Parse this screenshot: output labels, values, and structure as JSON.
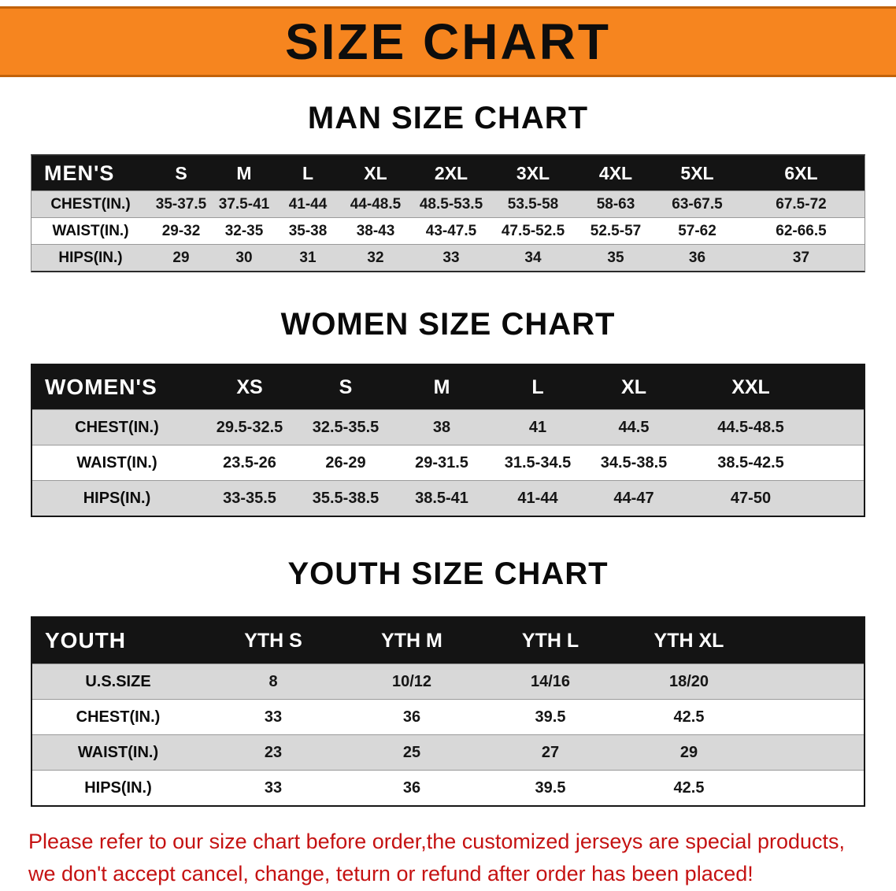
{
  "banner": {
    "title": "SIZE CHART"
  },
  "colors": {
    "banner_bg": "#f6851f",
    "banner_edge": "#c2620a",
    "table_header_bg": "#141414",
    "row_stripe": "#d8d8d8",
    "footer_text": "#c51212"
  },
  "chart_data": [
    {
      "type": "table",
      "title": "MAN SIZE CHART",
      "columns": [
        "MEN'S",
        "S",
        "M",
        "L",
        "XL",
        "2XL",
        "3XL",
        "4XL",
        "5XL",
        "6XL"
      ],
      "rows": [
        {
          "label": "CHEST(IN.)",
          "values": [
            "35-37.5",
            "37.5-41",
            "41-44",
            "44-48.5",
            "48.5-53.5",
            "53.5-58",
            "58-63",
            "63-67.5",
            "67.5-72"
          ]
        },
        {
          "label": "WAIST(IN.)",
          "values": [
            "29-32",
            "32-35",
            "35-38",
            "38-43",
            "43-47.5",
            "47.5-52.5",
            "52.5-57",
            "57-62",
            "62-66.5"
          ]
        },
        {
          "label": "HIPS(IN.)",
          "values": [
            "29",
            "30",
            "31",
            "32",
            "33",
            "34",
            "35",
            "36",
            "37"
          ]
        }
      ]
    },
    {
      "type": "table",
      "title": "WOMEN SIZE CHART",
      "columns": [
        "WOMEN'S",
        "XS",
        "S",
        "M",
        "L",
        "XL",
        "XXL"
      ],
      "rows": [
        {
          "label": "CHEST(IN.)",
          "values": [
            "29.5-32.5",
            "32.5-35.5",
            "38",
            "41",
            "44.5",
            "44.5-48.5"
          ]
        },
        {
          "label": "WAIST(IN.)",
          "values": [
            "23.5-26",
            "26-29",
            "29-31.5",
            "31.5-34.5",
            "34.5-38.5",
            "38.5-42.5"
          ]
        },
        {
          "label": "HIPS(IN.)",
          "values": [
            "33-35.5",
            "35.5-38.5",
            "38.5-41",
            "41-44",
            "44-47",
            "47-50"
          ]
        }
      ]
    },
    {
      "type": "table",
      "title": "YOUTH SIZE CHART",
      "columns": [
        "YOUTH",
        "YTH S",
        "YTH M",
        "YTH L",
        "YTH XL"
      ],
      "rows": [
        {
          "label": "U.S.SIZE",
          "values": [
            "8",
            "10/12",
            "14/16",
            "18/20"
          ]
        },
        {
          "label": "CHEST(IN.)",
          "values": [
            "33",
            "36",
            "39.5",
            "42.5"
          ]
        },
        {
          "label": "WAIST(IN.)",
          "values": [
            "23",
            "25",
            "27",
            "29"
          ]
        },
        {
          "label": "HIPS(IN.)",
          "values": [
            "33",
            "36",
            "39.5",
            "42.5"
          ]
        }
      ]
    }
  ],
  "footer": {
    "line1": "Please refer to our size chart before order,the customized jerseys are special products,",
    "line2": "we don't accept cancel, change, teturn or refund after order has been placed!"
  }
}
